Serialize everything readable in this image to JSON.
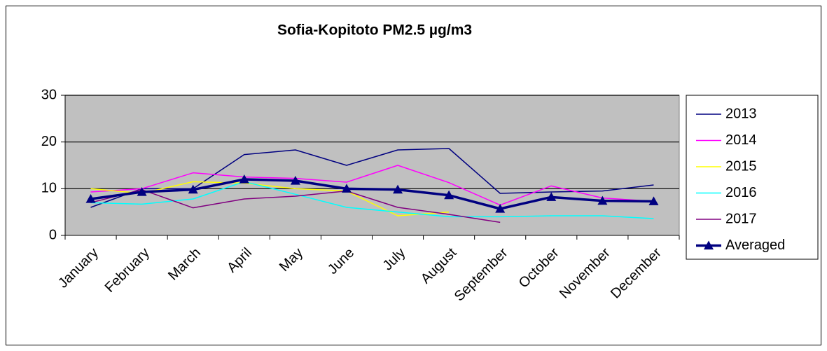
{
  "chart_data": {
    "type": "line",
    "title": "Sofia-Kopitoto PM2.5 µg/m3",
    "categories": [
      "January",
      "February",
      "March",
      "April",
      "May",
      "June",
      "July",
      "August",
      "September",
      "October",
      "November",
      "December"
    ],
    "series": [
      {
        "name": "2013",
        "color": "#000080",
        "values": [
          6,
          10,
          10,
          17.3,
          18.3,
          15,
          18.3,
          18.6,
          9,
          9.3,
          9.5,
          10.8
        ]
      },
      {
        "name": "2014",
        "color": "#ff00ff",
        "values": [
          9.3,
          10,
          13.4,
          12.5,
          12.2,
          11.4,
          15,
          11.3,
          6.5,
          10.6,
          8,
          7.3
        ]
      },
      {
        "name": "2015",
        "color": "#ffff00",
        "values": [
          10,
          9,
          11.5,
          11.2,
          10,
          9.5,
          4.2,
          5,
          null,
          null,
          null,
          null
        ]
      },
      {
        "name": "2016",
        "color": "#00ffff",
        "values": [
          7,
          6.7,
          7.8,
          11.5,
          8.8,
          6,
          5,
          4,
          4,
          4.2,
          4.2,
          3.6
        ]
      },
      {
        "name": "2017",
        "color": "#800080",
        "values": [
          7,
          9.8,
          5.9,
          7.8,
          8.4,
          9.5,
          6,
          4.5,
          2.8,
          null,
          null,
          null
        ]
      },
      {
        "name": "Averaged",
        "color": "#000080",
        "marker": "triangle",
        "values": [
          7.8,
          9.3,
          9.8,
          12,
          11.7,
          10,
          9.8,
          8.6,
          5.7,
          8.2,
          7.4,
          7.3
        ]
      }
    ],
    "ylim": [
      0,
      30
    ],
    "yticks": [
      0,
      10,
      20,
      30
    ],
    "grid": true,
    "plot_background": "#c0c0c0",
    "legend": "right"
  }
}
